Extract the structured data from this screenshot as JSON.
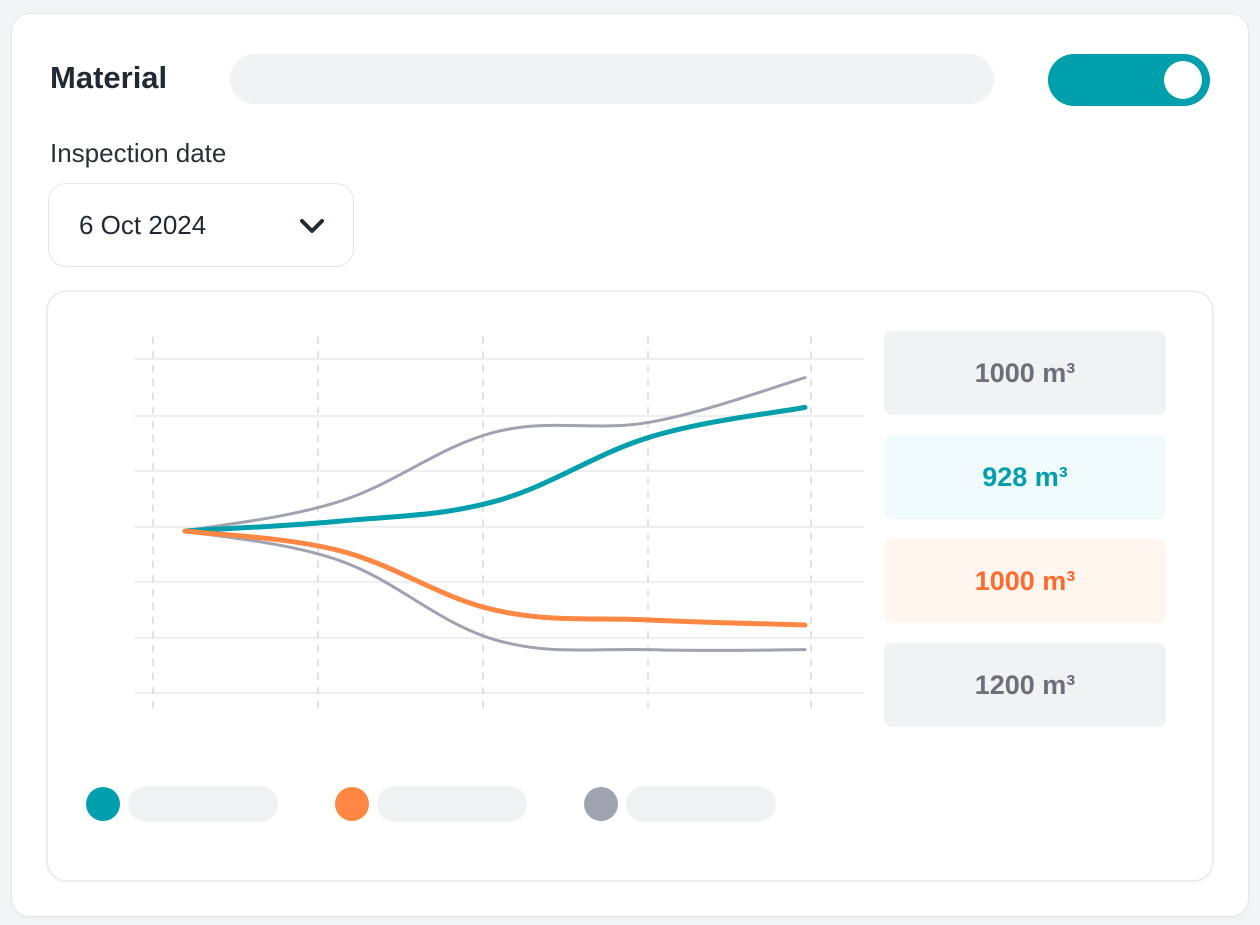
{
  "header": {
    "title": "Material",
    "toggle_on": true
  },
  "inspection": {
    "label": "Inspection date",
    "selected_date": "6 Oct 2024",
    "dropdown_icon": "chevron-down-icon"
  },
  "colors": {
    "teal": "#009fad",
    "orange": "#ff8744",
    "gray": "#a0a3af"
  },
  "value_boxes": [
    {
      "text": "1000 m³",
      "text_color": "#6b6f7a",
      "bg": "#f1f2f4"
    },
    {
      "text": "928 m³",
      "text_color": "#009fad",
      "bg": "#f1fbfc"
    },
    {
      "text": "1000 m³",
      "text_color": "#ff6b2c",
      "bg": "#fff6f0"
    },
    {
      "text": "1200 m³",
      "text_color": "#6b6f7a",
      "bg": "#f1f2f4"
    }
  ],
  "legend": [
    {
      "color": "#009fad",
      "series": "teal"
    },
    {
      "color": "#ff8744",
      "series": "orange"
    },
    {
      "color": "#a0a3af",
      "series": "gray"
    }
  ],
  "chart_data": {
    "type": "line",
    "x": [
      0,
      1,
      2,
      3,
      4
    ],
    "ylim": [
      -3,
      3
    ],
    "grid": true,
    "series": [
      {
        "color": "#a0a3af",
        "values": [
          0,
          0.6,
          2.0,
          2.2,
          3.1
        ]
      },
      {
        "color": "#009fad",
        "values": [
          0,
          0.2,
          0.6,
          1.9,
          2.5
        ]
      },
      {
        "color": "#ff8744",
        "values": [
          0,
          -0.4,
          -1.6,
          -1.8,
          -1.9
        ]
      },
      {
        "color": "#a0a3af",
        "values": [
          0,
          -0.6,
          -2.2,
          -2.4,
          -2.4
        ]
      }
    ]
  }
}
